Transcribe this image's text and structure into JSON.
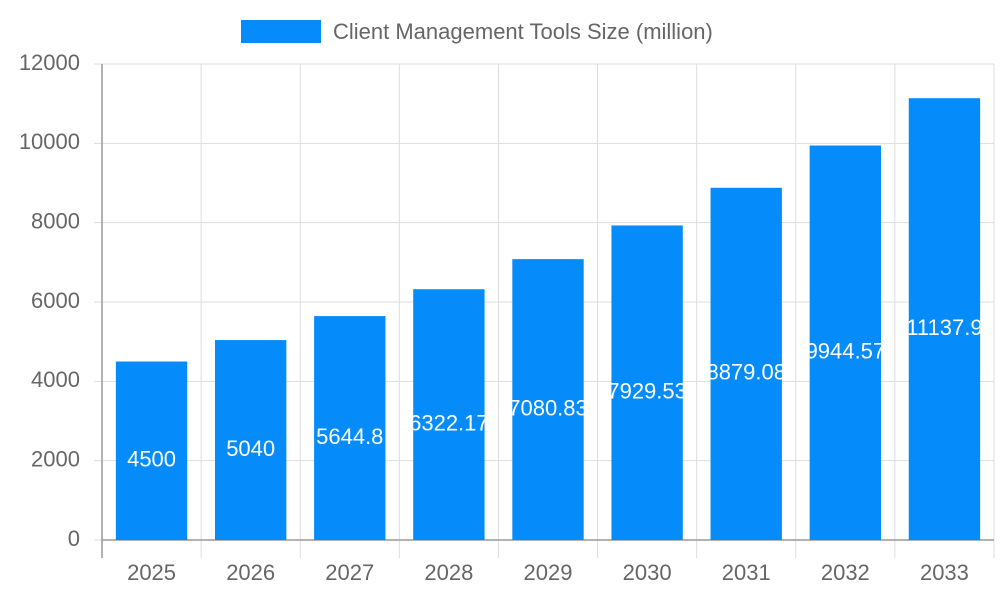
{
  "chart_data": {
    "type": "bar",
    "categories": [
      "2025",
      "2026",
      "2027",
      "2028",
      "2029",
      "2030",
      "2031",
      "2032",
      "2033"
    ],
    "series": [
      {
        "name": "Client Management Tools Size (million)",
        "color": "#068cfa",
        "values": [
          4500,
          5040,
          5644.8,
          6322.17,
          7080.83,
          7929.53,
          8879.08,
          9944.57,
          11137.9
        ]
      }
    ],
    "ylim": [
      0,
      12000
    ],
    "yticks": [
      0,
      2000,
      4000,
      6000,
      8000,
      10000,
      12000
    ],
    "grid": true,
    "legend": "top"
  }
}
